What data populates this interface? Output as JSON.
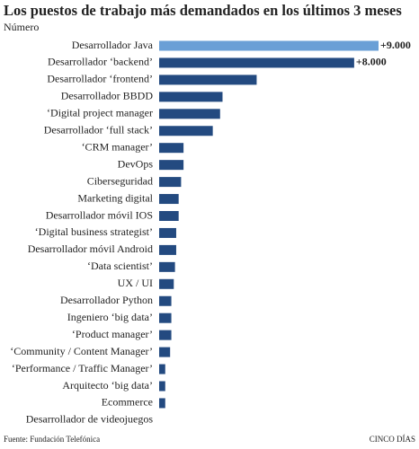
{
  "chart_data": {
    "type": "bar",
    "orientation": "horizontal",
    "title": "Los puestos de trabajo más demandados en los últimos 3 meses",
    "subtitle": "Número",
    "source": "Fuente: Fundación Telefónica",
    "credit": "CINCO DÍAS",
    "categories": [
      "Desarrollador Java",
      "Desarrollador ‘backend’",
      "Desarrollador ‘frontend’",
      "Desarrollador BBDD",
      "‘Digital project manager",
      "Desarrollador ‘full stack’",
      "‘CRM manager’",
      "DevOps",
      "Ciberseguridad",
      "Marketing digital",
      "Desarrollador móvil IOS",
      "‘Digital business strategist’",
      "Desarrollador móvil Android",
      "‘Data scientist’",
      "UX / UI",
      "Desarrollador Python",
      "Ingeniero ‘big data’",
      "‘Product manager’",
      "‘Community / Content Manager’",
      "‘Performance / Traffic Manager’",
      "Arquitecto ‘big data’",
      "Ecommerce",
      "Desarrollador de videojuegos"
    ],
    "values": [
      9000,
      8000,
      4000,
      2600,
      2500,
      2200,
      1000,
      1000,
      900,
      800,
      800,
      700,
      700,
      650,
      600,
      500,
      500,
      500,
      450,
      250,
      250,
      250,
      0
    ],
    "value_labels": [
      "+9.000",
      "+8.000",
      null,
      null,
      null,
      null,
      null,
      null,
      null,
      null,
      null,
      null,
      null,
      null,
      null,
      null,
      null,
      null,
      null,
      null,
      null,
      null,
      null
    ],
    "colors": [
      "#6a9fd6",
      "#234a80",
      "#234a80",
      "#234a80",
      "#234a80",
      "#234a80",
      "#234a80",
      "#234a80",
      "#234a80",
      "#234a80",
      "#234a80",
      "#234a80",
      "#234a80",
      "#234a80",
      "#234a80",
      "#234a80",
      "#234a80",
      "#234a80",
      "#234a80",
      "#234a80",
      "#234a80",
      "#234a80",
      "#234a80"
    ]
  }
}
